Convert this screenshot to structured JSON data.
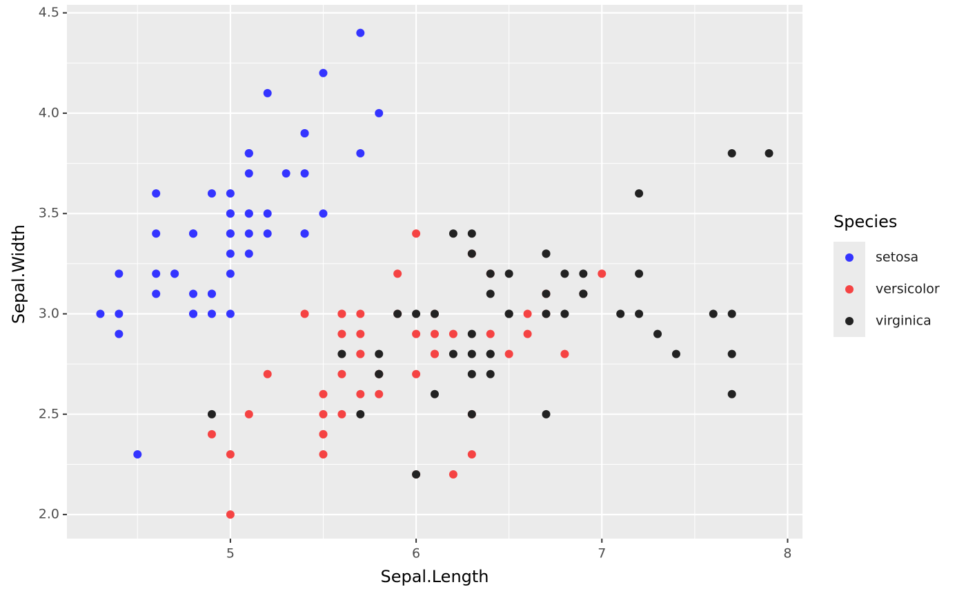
{
  "chart_data": {
    "type": "scatter",
    "x_label": "Sepal.Length",
    "y_label": "Sepal.Width",
    "legend_title": "Species",
    "xlim": [
      4.12,
      8.08
    ],
    "ylim": [
      1.88,
      4.54
    ],
    "xticks": [
      5,
      6,
      7,
      8
    ],
    "yticks": [
      {
        "value": 2,
        "label": "2.0"
      },
      2.5,
      {
        "value": 3,
        "label": "3.0"
      },
      3.5,
      {
        "value": 4,
        "label": "4.0"
      },
      4.5
    ],
    "grid": true,
    "legend": "right",
    "series": [
      {
        "name": "setosa",
        "color": "#3434ff",
        "x": [
          5.1,
          4.9,
          4.7,
          4.6,
          5.0,
          5.4,
          4.6,
          5.0,
          4.4,
          4.9,
          5.4,
          4.8,
          4.8,
          4.3,
          5.8,
          5.7,
          5.4,
          5.1,
          5.7,
          5.1,
          5.4,
          5.1,
          4.6,
          5.1,
          4.8,
          5.0,
          5.0,
          5.2,
          5.2,
          4.7,
          4.8,
          5.4,
          5.2,
          5.5,
          4.9,
          5.0,
          5.5,
          4.9,
          4.4,
          5.1,
          5.0,
          4.5,
          4.4,
          5.0,
          5.1,
          4.8,
          5.1,
          4.6,
          5.3,
          5.0
        ],
        "values": [
          3.5,
          3.0,
          3.2,
          3.1,
          3.6,
          3.9,
          3.4,
          3.4,
          2.9,
          3.1,
          3.7,
          3.4,
          3.0,
          3.0,
          4.0,
          4.4,
          3.9,
          3.5,
          3.8,
          3.8,
          3.4,
          3.7,
          3.6,
          3.3,
          3.4,
          3.0,
          3.4,
          3.5,
          3.4,
          3.2,
          3.1,
          3.4,
          4.1,
          4.2,
          3.1,
          3.2,
          3.5,
          3.6,
          3.0,
          3.4,
          3.5,
          2.3,
          3.2,
          3.5,
          3.8,
          3.0,
          3.8,
          3.2,
          3.7,
          3.3
        ]
      },
      {
        "name": "versicolor",
        "color": "#f54343",
        "x": [
          7.0,
          6.4,
          6.9,
          5.5,
          6.5,
          5.7,
          6.3,
          4.9,
          6.6,
          5.2,
          5.0,
          5.9,
          6.0,
          6.1,
          5.6,
          6.7,
          5.6,
          5.8,
          6.2,
          5.6,
          5.9,
          6.1,
          6.3,
          6.1,
          6.4,
          6.6,
          6.8,
          6.7,
          6.0,
          5.7,
          5.5,
          5.5,
          5.8,
          6.0,
          5.4,
          6.0,
          6.7,
          6.3,
          5.6,
          5.5,
          5.5,
          6.1,
          5.8,
          5.0,
          5.6,
          5.7,
          5.7,
          6.2,
          5.1,
          5.7
        ],
        "values": [
          3.2,
          3.2,
          3.1,
          2.3,
          2.8,
          2.8,
          3.3,
          2.4,
          2.9,
          2.7,
          2.0,
          3.0,
          2.2,
          2.9,
          2.9,
          3.1,
          3.0,
          2.7,
          2.2,
          2.5,
          3.2,
          2.8,
          2.5,
          2.8,
          2.9,
          3.0,
          2.8,
          3.0,
          2.9,
          2.6,
          2.4,
          2.4,
          2.7,
          2.7,
          3.0,
          3.4,
          3.1,
          2.3,
          3.0,
          2.5,
          2.6,
          3.0,
          2.6,
          2.3,
          2.7,
          3.0,
          2.9,
          2.9,
          2.5,
          2.8
        ]
      },
      {
        "name": "virginica",
        "color": "#222222",
        "x": [
          6.3,
          5.8,
          7.1,
          6.3,
          6.5,
          7.6,
          4.9,
          7.3,
          6.7,
          7.2,
          6.5,
          6.4,
          6.8,
          5.7,
          5.8,
          6.4,
          6.5,
          7.7,
          7.7,
          6.0,
          6.9,
          5.6,
          7.7,
          6.3,
          6.7,
          7.2,
          6.2,
          6.1,
          6.4,
          7.2,
          7.4,
          7.9,
          6.4,
          6.3,
          6.1,
          7.7,
          6.3,
          6.4,
          6.0,
          6.9,
          6.7,
          6.9,
          5.8,
          6.8,
          6.7,
          6.7,
          6.3,
          6.5,
          6.2,
          5.9
        ],
        "values": [
          3.3,
          2.7,
          3.0,
          2.9,
          3.0,
          3.0,
          2.5,
          2.9,
          2.5,
          3.6,
          3.2,
          2.7,
          3.0,
          2.5,
          2.8,
          3.2,
          3.0,
          3.8,
          2.6,
          2.2,
          3.2,
          2.8,
          2.8,
          2.7,
          3.3,
          3.2,
          2.8,
          3.0,
          2.8,
          3.0,
          2.8,
          3.8,
          2.8,
          2.8,
          2.6,
          3.0,
          3.4,
          3.1,
          3.0,
          3.1,
          3.1,
          3.1,
          2.7,
          3.2,
          3.3,
          3.0,
          2.5,
          3.0,
          3.4,
          3.0
        ]
      }
    ]
  }
}
